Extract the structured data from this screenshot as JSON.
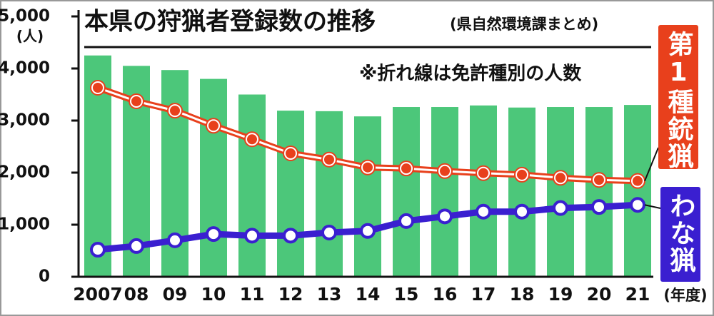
{
  "chart_data": {
    "type": "bar",
    "title": "本県の狩猟者登録数の推移",
    "subtitle": "(県自然環境課まとめ)",
    "annotation": "※折れ線は免許種別の人数",
    "y_label": "(人)",
    "x_label": "(年度)",
    "categories": [
      "2007",
      "08",
      "09",
      "10",
      "11",
      "12",
      "13",
      "14",
      "15",
      "16",
      "17",
      "18",
      "19",
      "20",
      "21"
    ],
    "series": [
      {
        "type": "bar",
        "color": "#4cc77a",
        "values": [
          4250,
          4050,
          3970,
          3800,
          3500,
          3190,
          3180,
          3080,
          3260,
          3260,
          3290,
          3250,
          3260,
          3260,
          3300
        ]
      },
      {
        "type": "line",
        "name": "第1種銃猟",
        "color": "#e8401c",
        "values": [
          3630,
          3370,
          3190,
          2900,
          2640,
          2370,
          2250,
          2100,
          2080,
          2030,
          1990,
          1960,
          1900,
          1860,
          1840
        ]
      },
      {
        "type": "line",
        "name": "わな猟",
        "color": "#3a1fd0",
        "values": [
          520,
          590,
          700,
          820,
          790,
          790,
          850,
          880,
          1070,
          1160,
          1250,
          1250,
          1320,
          1340,
          1380
        ]
      }
    ],
    "ylim": [
      0,
      5000
    ],
    "yticks": [
      0,
      {
        "value": 1000,
        "label": "1,000"
      },
      {
        "value": 2000,
        "label": "2,000"
      },
      {
        "value": 3000,
        "label": "3,000"
      },
      {
        "value": 4000,
        "label": "4,000"
      },
      {
        "value": 5000,
        "label": "5,000"
      }
    ]
  }
}
